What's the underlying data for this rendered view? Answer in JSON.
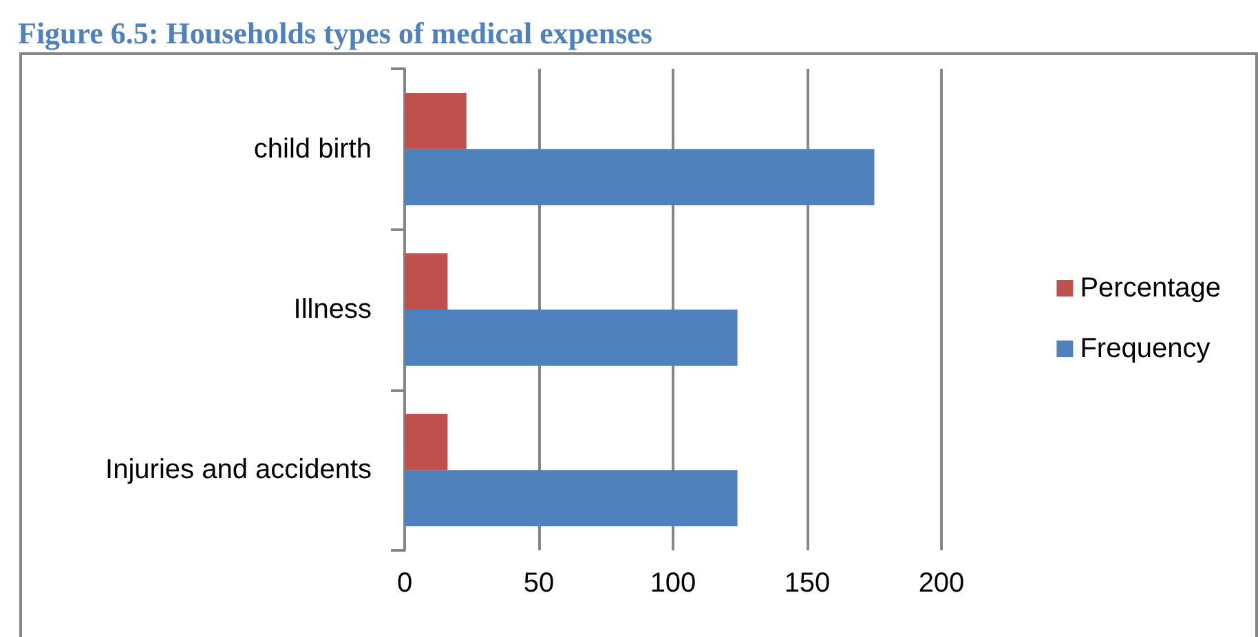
{
  "chart_data": {
    "type": "bar",
    "orientation": "horizontal",
    "title": "Figure 6.5: Households types of medical expenses",
    "categories": [
      "child birth",
      "Illness",
      "Injuries and accidents"
    ],
    "series": [
      {
        "name": "Percentage",
        "color": "#c0504d",
        "values": [
          23,
          16,
          16
        ]
      },
      {
        "name": "Frequency",
        "color": "#4f81bd",
        "values": [
          175,
          124,
          124
        ]
      }
    ],
    "xlim": [
      0,
      200
    ],
    "xticks": [
      0,
      50,
      100,
      150,
      200
    ],
    "grid": "x",
    "legend": "right"
  }
}
